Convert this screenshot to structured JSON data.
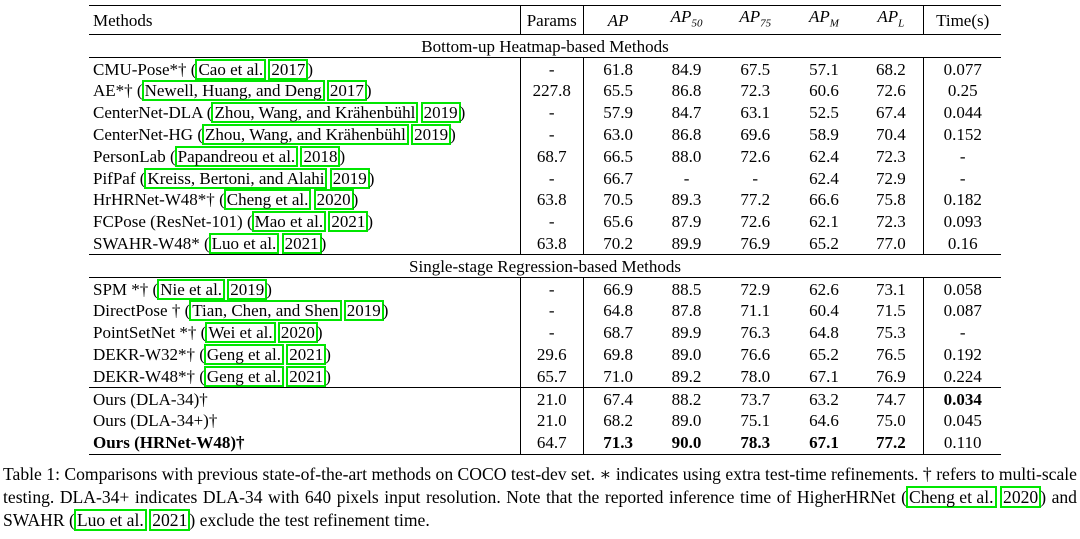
{
  "headers": {
    "methods": "Methods",
    "params": "Params",
    "ap": "AP",
    "ap50_base": "AP",
    "ap50_sub": "50",
    "ap75_base": "AP",
    "ap75_sub": "75",
    "apm_base": "AP",
    "apm_sub": "M",
    "apl_base": "AP",
    "apl_sub": "L",
    "time": "Time(s)"
  },
  "sections": {
    "bottom_up": "Bottom-up Heatmap-based Methods",
    "single_stage": "Single-stage Regression-based Methods"
  },
  "rows": [
    {
      "name": "CMU-Pose*†",
      "cite_a": "Cao et al.",
      "cite_b": "2017",
      "params": "-",
      "ap": "61.8",
      "ap50": "84.9",
      "ap75": "67.5",
      "apm": "57.1",
      "apl": "68.2",
      "time": "0.077"
    },
    {
      "name": "AE*†",
      "cite_a": "Newell, Huang, and Deng",
      "cite_b": "2017",
      "params": "227.8",
      "ap": "65.5",
      "ap50": "86.8",
      "ap75": "72.3",
      "apm": "60.6",
      "apl": "72.6",
      "time": "0.25"
    },
    {
      "name": "CenterNet-DLA",
      "cite_a": "Zhou, Wang, and Krähenbühl",
      "cite_b": "2019",
      "params": "-",
      "ap": "57.9",
      "ap50": "84.7",
      "ap75": "63.1",
      "apm": "52.5",
      "apl": "67.4",
      "time": "0.044"
    },
    {
      "name": "CenterNet-HG",
      "cite_a": "Zhou, Wang, and Krähenbühl",
      "cite_b": "2019",
      "params": "-",
      "ap": "63.0",
      "ap50": "86.8",
      "ap75": "69.6",
      "apm": "58.9",
      "apl": "70.4",
      "time": "0.152"
    },
    {
      "name": "PersonLab",
      "cite_a": "Papandreou et al.",
      "cite_b": "2018",
      "params": "68.7",
      "ap": "66.5",
      "ap50": "88.0",
      "ap75": "72.6",
      "apm": "62.4",
      "apl": "72.3",
      "time": "-"
    },
    {
      "name": "PifPaf",
      "cite_a": "Kreiss, Bertoni, and Alahi",
      "cite_b": "2019",
      "params": "-",
      "ap": "66.7",
      "ap50": "-",
      "ap75": "-",
      "apm": "62.4",
      "apl": "72.9",
      "time": "-"
    },
    {
      "name": "HrHRNet-W48*†",
      "cite_a": "Cheng et al.",
      "cite_b": "2020",
      "params": "63.8",
      "ap": "70.5",
      "ap50": "89.3",
      "ap75": "77.2",
      "apm": "66.6",
      "apl": "75.8",
      "time": "0.182"
    },
    {
      "name": "FCPose (ResNet-101)",
      "cite_a": "Mao et al.",
      "cite_b": "2021",
      "params": "-",
      "ap": "65.6",
      "ap50": "87.9",
      "ap75": "72.6",
      "apm": "62.1",
      "apl": "72.3",
      "time": "0.093"
    },
    {
      "name": "SWAHR-W48*",
      "cite_a": "Luo et al.",
      "cite_b": "2021",
      "params": "63.8",
      "ap": "70.2",
      "ap50": "89.9",
      "ap75": "76.9",
      "apm": "65.2",
      "apl": "77.0",
      "time": "0.16"
    }
  ],
  "rows2": [
    {
      "name": "SPM *†",
      "cite_a": "Nie et al.",
      "cite_b": "2019",
      "params": "-",
      "ap": "66.9",
      "ap50": "88.5",
      "ap75": "72.9",
      "apm": "62.6",
      "apl": "73.1",
      "time": "0.058"
    },
    {
      "name": "DirectPose †",
      "cite_a": "Tian, Chen, and Shen",
      "cite_b": "2019",
      "params": "-",
      "ap": "64.8",
      "ap50": "87.8",
      "ap75": "71.1",
      "apm": "60.4",
      "apl": "71.5",
      "time": "0.087"
    },
    {
      "name": "PointSetNet *†",
      "cite_a": "Wei et al.",
      "cite_b": "2020",
      "params": "-",
      "ap": "68.7",
      "ap50": "89.9",
      "ap75": "76.3",
      "apm": "64.8",
      "apl": "75.3",
      "time": "-"
    },
    {
      "name": "DEKR-W32*†",
      "cite_a": "Geng et al.",
      "cite_b": "2021",
      "params": "29.6",
      "ap": "69.8",
      "ap50": "89.0",
      "ap75": "76.6",
      "apm": "65.2",
      "apl": "76.5",
      "time": "0.192"
    },
    {
      "name": "DEKR-W48*†",
      "cite_a": "Geng et al.",
      "cite_b": "2021",
      "params": "65.7",
      "ap": "71.0",
      "ap50": "89.2",
      "ap75": "78.0",
      "apm": "67.1",
      "apl": "76.9",
      "time": "0.224"
    }
  ],
  "ours": [
    {
      "name": "Ours (DLA-34)†",
      "params": "21.0",
      "ap": "67.4",
      "ap50": "88.2",
      "ap75": "73.7",
      "apm": "63.2",
      "apl": "74.7",
      "time": "0.034"
    },
    {
      "name": "Ours (DLA-34+)†",
      "params": "21.0",
      "ap": "68.2",
      "ap50": "89.0",
      "ap75": "75.1",
      "apm": "64.6",
      "apl": "75.0",
      "time": "0.045"
    },
    {
      "name": "Ours (HRNet-W48)†",
      "params": "64.7",
      "ap": "71.3",
      "ap50": "90.0",
      "ap75": "78.3",
      "apm": "67.1",
      "apl": "77.2",
      "time": "0.110"
    }
  ],
  "caption": {
    "part1": "Table 1: Comparisons with previous state-of-the-art methods on COCO test-dev set. ∗ indicates using extra test-time refinements. † refers to multi-scale testing. DLA-34+ indicates DLA-34 with 640 pixels input resolution. Note that the reported inference time of HigherHRNet (",
    "cite1_a": "Cheng et al.",
    "cite1_b": "2020",
    "part2": ") and SWAHR (",
    "cite2_a": "Luo et al.",
    "cite2_b": "2021",
    "part3": ") exclude the test refinement time."
  }
}
